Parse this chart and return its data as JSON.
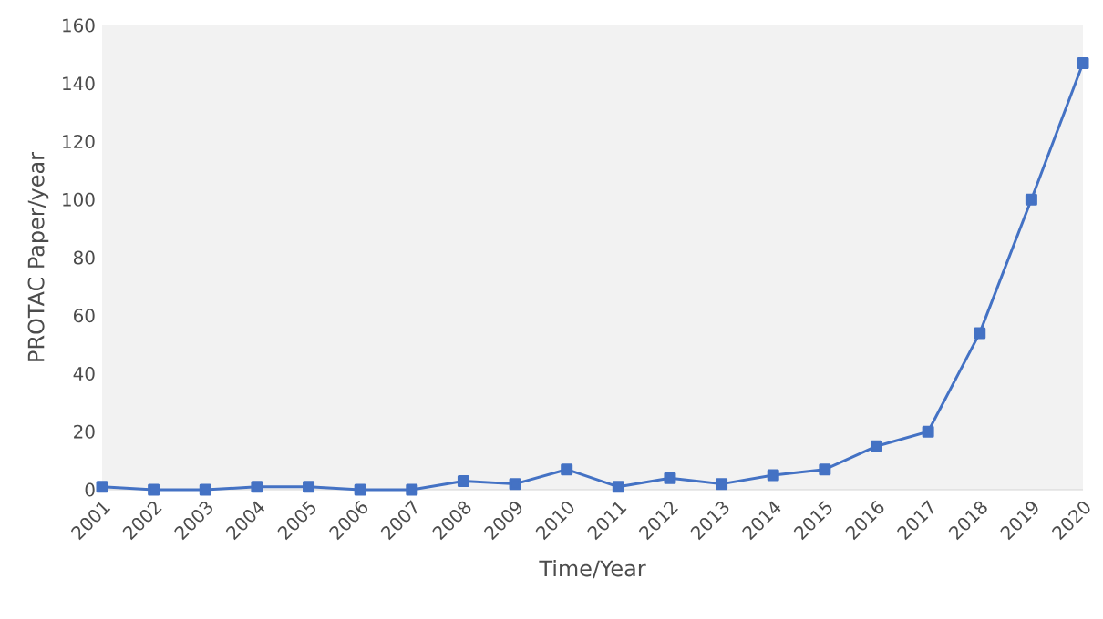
{
  "chart_data": {
    "type": "line",
    "xlabel": "Time/Year",
    "ylabel": "PROTAC Paper/year",
    "categories": [
      "2001",
      "2002",
      "2003",
      "2004",
      "2005",
      "2006",
      "2007",
      "2008",
      "2009",
      "2010",
      "2011",
      "2012",
      "2013",
      "2014",
      "2015",
      "2016",
      "2017",
      "2018",
      "2019",
      "2020"
    ],
    "series": [
      {
        "color": "#4472c4",
        "values": [
          1,
          0,
          0,
          1,
          1,
          0,
          0,
          3,
          2,
          7,
          1,
          4,
          2,
          5,
          7,
          15,
          20,
          54,
          100,
          147
        ]
      }
    ],
    "ylim": [
      0,
      160
    ],
    "yticks": [
      0,
      20,
      40,
      60,
      80,
      100,
      120,
      140,
      160
    ],
    "marker": "square",
    "line_style": "solid"
  }
}
